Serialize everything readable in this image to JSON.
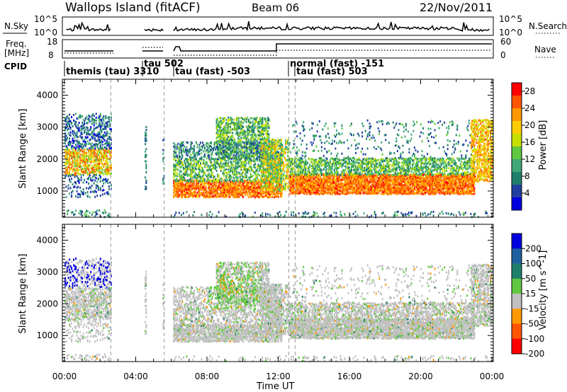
{
  "header": {
    "title": "Wallops Island (fitACF)",
    "beam": "Beam 06",
    "date": "22/Nov/2011"
  },
  "chart_data": [
    {
      "type": "line",
      "panel": "noise",
      "left_label": "N.Sky",
      "right_label": "N.Search",
      "left_ticks": [
        "10^5",
        "10^0"
      ],
      "right_ticks": [
        "10^5",
        "10^0"
      ]
    },
    {
      "type": "line",
      "panel": "frequency",
      "left_label": [
        "Freq.",
        "[MHz]"
      ],
      "right_label": "Nave",
      "left_ticks": [
        "18",
        "8"
      ],
      "right_ticks": [
        "60",
        "0"
      ]
    },
    {
      "type": "table",
      "panel": "cpid",
      "label": "CPID",
      "segments": [
        {
          "start_h": 0.0,
          "label": "themis (tau) 3310"
        },
        {
          "start_h": 4.5,
          "label": "tau 502"
        },
        {
          "start_h": 6.1,
          "label": "tau (fast) -503"
        },
        {
          "start_h": 12.6,
          "label": "normal (fast) -151"
        },
        {
          "start_h": 13.2,
          "label": "tau (fast) 503"
        }
      ]
    },
    {
      "type": "heatmap",
      "panel": "power",
      "ylabel": "Slant Range [km]",
      "ylim": [
        180,
        4500
      ],
      "yticks": [
        "1000",
        "2000",
        "3000",
        "4000"
      ],
      "colorbar_label": "Power [dB]",
      "colorbar_ticks": [
        "4",
        "8",
        "12",
        "16",
        "20",
        "24",
        "28"
      ],
      "colors": [
        "#0000e0",
        "#2040a0",
        "#207f6a",
        "#40a878",
        "#60c840",
        "#c8e000",
        "#ffcc00",
        "#ff9900",
        "#ff5500",
        "#ff0000"
      ]
    },
    {
      "type": "heatmap",
      "panel": "velocity",
      "ylabel": "Slant Range [km]",
      "ylim": [
        180,
        4500
      ],
      "yticks": [
        "1000",
        "2000",
        "3000",
        "4000"
      ],
      "colorbar_label": "Velocity [m s^-1]",
      "colorbar_ticks": [
        "200",
        "100",
        "50",
        "15",
        "-15",
        "-50",
        "-100",
        "-200"
      ],
      "colors": [
        "#0000e0",
        "#2060a0",
        "#207f6a",
        "#60c840",
        "#c0c0c0",
        "#ff9900",
        "#ff5500",
        "#ff0000"
      ]
    }
  ],
  "xaxis": {
    "xlabel": "Time UT",
    "xlim": [
      0,
      24
    ],
    "ticks": [
      "00:00",
      "04:00",
      "08:00",
      "12:00",
      "16:00",
      "20:00",
      "00:00"
    ]
  }
}
